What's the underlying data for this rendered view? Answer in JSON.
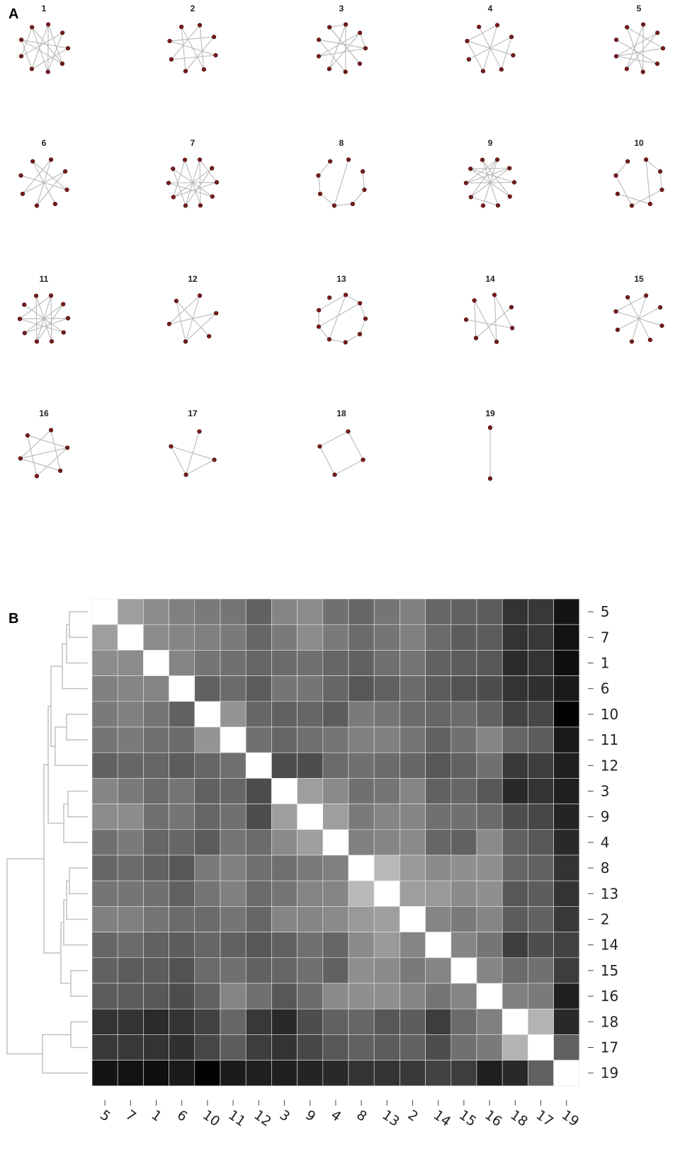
{
  "panel_a_label": "A",
  "panel_b_label": "B",
  "chart_data": [
    {
      "type": "network-small-multiples",
      "panel": "A",
      "networks": [
        {
          "title": "1",
          "nodes": 9,
          "edges": [
            [
              0,
              3
            ],
            [
              0,
              5
            ],
            [
              1,
              4
            ],
            [
              1,
              6
            ],
            [
              2,
              7
            ],
            [
              2,
              5
            ],
            [
              3,
              7
            ],
            [
              3,
              8
            ],
            [
              4,
              8
            ],
            [
              6,
              8
            ],
            [
              0,
              4
            ],
            [
              5,
              7
            ]
          ]
        },
        {
          "title": "2",
          "nodes": 8,
          "edges": [
            [
              0,
              5
            ],
            [
              1,
              4
            ],
            [
              2,
              6
            ],
            [
              3,
              7
            ],
            [
              0,
              3
            ],
            [
              4,
              7
            ],
            [
              1,
              6
            ],
            [
              2,
              5
            ]
          ]
        },
        {
          "title": "3",
          "nodes": 9,
          "edges": [
            [
              0,
              4
            ],
            [
              0,
              5
            ],
            [
              1,
              5
            ],
            [
              1,
              6
            ],
            [
              2,
              7
            ],
            [
              3,
              8
            ],
            [
              8,
              3
            ],
            [
              2,
              6
            ],
            [
              0,
              8
            ],
            [
              4,
              7
            ],
            [
              1,
              2
            ]
          ]
        },
        {
          "title": "4",
          "nodes": 8,
          "edges": [
            [
              0,
              4
            ],
            [
              1,
              5
            ],
            [
              2,
              6
            ],
            [
              3,
              7
            ],
            [
              0,
              6
            ],
            [
              1,
              3
            ],
            [
              4,
              6
            ]
          ]
        },
        {
          "title": "5",
          "nodes": 9,
          "edges": [
            [
              0,
              4
            ],
            [
              1,
              5
            ],
            [
              2,
              6
            ],
            [
              3,
              7
            ],
            [
              4,
              8
            ],
            [
              0,
              5
            ],
            [
              1,
              6
            ],
            [
              2,
              8
            ],
            [
              3,
              6
            ]
          ]
        },
        {
          "title": "6",
          "nodes": 8,
          "edges": [
            [
              0,
              4
            ],
            [
              1,
              5
            ],
            [
              2,
              6
            ],
            [
              3,
              7
            ],
            [
              0,
              5
            ],
            [
              1,
              4
            ],
            [
              2,
              7
            ]
          ]
        },
        {
          "title": "7",
          "nodes": 10,
          "edges": [
            [
              0,
              5
            ],
            [
              1,
              6
            ],
            [
              2,
              7
            ],
            [
              3,
              8
            ],
            [
              4,
              9
            ],
            [
              0,
              4
            ],
            [
              1,
              5
            ],
            [
              2,
              6
            ],
            [
              3,
              7
            ],
            [
              0,
              2
            ],
            [
              5,
              8
            ],
            [
              6,
              9
            ]
          ]
        },
        {
          "title": "8",
          "nodes": 8,
          "edges": [
            [
              0,
              4
            ],
            [
              1,
              2
            ],
            [
              3,
              4
            ],
            [
              4,
              5
            ],
            [
              6,
              7
            ],
            [
              2,
              3
            ],
            [
              5,
              6
            ]
          ]
        },
        {
          "title": "9",
          "nodes": 10,
          "edges": [
            [
              0,
              5
            ],
            [
              1,
              6
            ],
            [
              2,
              7
            ],
            [
              3,
              8
            ],
            [
              4,
              9
            ],
            [
              0,
              6
            ],
            [
              1,
              7
            ],
            [
              2,
              8
            ],
            [
              3,
              9
            ],
            [
              4,
              6
            ],
            [
              0,
              7
            ],
            [
              1,
              8
            ]
          ]
        },
        {
          "title": "10",
          "nodes": 8,
          "edges": [
            [
              0,
              1
            ],
            [
              1,
              2
            ],
            [
              2,
              4
            ],
            [
              3,
              5
            ],
            [
              4,
              6
            ],
            [
              6,
              7
            ],
            [
              0,
              3
            ]
          ]
        },
        {
          "title": "11",
          "nodes": 10,
          "edges": [
            [
              0,
              5
            ],
            [
              1,
              6
            ],
            [
              2,
              7
            ],
            [
              3,
              8
            ],
            [
              4,
              9
            ],
            [
              0,
              4
            ],
            [
              1,
              5
            ],
            [
              2,
              6
            ],
            [
              3,
              7
            ],
            [
              0,
              7
            ],
            [
              5,
              9
            ]
          ]
        },
        {
          "title": "12",
          "nodes": 6,
          "edges": [
            [
              0,
              3
            ],
            [
              1,
              4
            ],
            [
              2,
              5
            ],
            [
              0,
              4
            ],
            [
              1,
              3
            ],
            [
              3,
              5
            ]
          ]
        },
        {
          "title": "13",
          "nodes": 9,
          "edges": [
            [
              0,
              1
            ],
            [
              1,
              2
            ],
            [
              2,
              3
            ],
            [
              3,
              4
            ],
            [
              4,
              5
            ],
            [
              5,
              6
            ],
            [
              6,
              7
            ],
            [
              7,
              0
            ],
            [
              0,
              5
            ],
            [
              1,
              6
            ]
          ]
        },
        {
          "title": "14",
          "nodes": 7,
          "edges": [
            [
              0,
              3
            ],
            [
              1,
              4
            ],
            [
              2,
              5
            ],
            [
              3,
              6
            ],
            [
              0,
              2
            ],
            [
              4,
              6
            ]
          ]
        },
        {
          "title": "15",
          "nodes": 8,
          "edges": [
            [
              0,
              4
            ],
            [
              1,
              5
            ],
            [
              2,
              6
            ],
            [
              3,
              7
            ],
            [
              0,
              6
            ]
          ]
        },
        {
          "title": "16",
          "nodes": 6,
          "edges": [
            [
              0,
              2
            ],
            [
              1,
              3
            ],
            [
              2,
              4
            ],
            [
              3,
              5
            ],
            [
              4,
              0
            ],
            [
              5,
              1
            ],
            [
              1,
              4
            ]
          ]
        },
        {
          "title": "17",
          "nodes": 4,
          "edges": [
            [
              0,
              2
            ],
            [
              1,
              2
            ],
            [
              2,
              3
            ],
            [
              3,
              1
            ]
          ]
        },
        {
          "title": "18",
          "nodes": 4,
          "edges": [
            [
              0,
              1
            ],
            [
              0,
              3
            ],
            [
              1,
              2
            ],
            [
              2,
              3
            ]
          ]
        },
        {
          "title": "19",
          "nodes": 2,
          "edges": [
            [
              0,
              1
            ]
          ]
        }
      ]
    },
    {
      "type": "heatmap",
      "panel": "B",
      "grid": false,
      "x_categories": [
        "5",
        "7",
        "1",
        "6",
        "10",
        "11",
        "12",
        "3",
        "9",
        "4",
        "8",
        "13",
        "2",
        "14",
        "15",
        "16",
        "18",
        "17",
        "19"
      ],
      "y_categories": [
        "5",
        "7",
        "1",
        "6",
        "10",
        "11",
        "12",
        "3",
        "9",
        "4",
        "8",
        "13",
        "2",
        "14",
        "15",
        "16",
        "18",
        "17",
        "19"
      ],
      "value_range": [
        0,
        1
      ],
      "color_scale": {
        "low": "#000000",
        "high": "#ffffff"
      },
      "values": [
        [
          1.0,
          0.62,
          0.55,
          0.5,
          0.48,
          0.46,
          0.38,
          0.52,
          0.55,
          0.44,
          0.4,
          0.46,
          0.5,
          0.4,
          0.38,
          0.36,
          0.2,
          0.22,
          0.08
        ],
        [
          0.62,
          1.0,
          0.55,
          0.52,
          0.5,
          0.48,
          0.4,
          0.48,
          0.55,
          0.48,
          0.42,
          0.46,
          0.5,
          0.42,
          0.36,
          0.36,
          0.2,
          0.22,
          0.07
        ],
        [
          0.55,
          0.55,
          1.0,
          0.52,
          0.46,
          0.44,
          0.4,
          0.42,
          0.44,
          0.4,
          0.38,
          0.44,
          0.46,
          0.38,
          0.36,
          0.34,
          0.17,
          0.2,
          0.06
        ],
        [
          0.5,
          0.52,
          0.52,
          1.0,
          0.38,
          0.42,
          0.36,
          0.46,
          0.46,
          0.4,
          0.34,
          0.38,
          0.42,
          0.36,
          0.32,
          0.3,
          0.2,
          0.19,
          0.1
        ],
        [
          0.48,
          0.5,
          0.46,
          0.38,
          1.0,
          0.58,
          0.4,
          0.38,
          0.4,
          0.36,
          0.48,
          0.46,
          0.42,
          0.4,
          0.42,
          0.38,
          0.26,
          0.28,
          0.01
        ],
        [
          0.46,
          0.48,
          0.44,
          0.42,
          0.58,
          1.0,
          0.44,
          0.4,
          0.44,
          0.46,
          0.5,
          0.5,
          0.46,
          0.38,
          0.44,
          0.52,
          0.4,
          0.36,
          0.1
        ],
        [
          0.38,
          0.4,
          0.4,
          0.36,
          0.4,
          0.44,
          1.0,
          0.3,
          0.3,
          0.42,
          0.44,
          0.42,
          0.4,
          0.34,
          0.38,
          0.44,
          0.22,
          0.24,
          0.12
        ],
        [
          0.52,
          0.48,
          0.42,
          0.46,
          0.38,
          0.4,
          0.3,
          1.0,
          0.62,
          0.54,
          0.44,
          0.46,
          0.52,
          0.38,
          0.4,
          0.34,
          0.16,
          0.2,
          0.12
        ],
        [
          0.55,
          0.55,
          0.44,
          0.46,
          0.4,
          0.44,
          0.3,
          0.62,
          1.0,
          0.62,
          0.48,
          0.52,
          0.52,
          0.44,
          0.44,
          0.42,
          0.3,
          0.28,
          0.14
        ],
        [
          0.44,
          0.48,
          0.4,
          0.4,
          0.36,
          0.46,
          0.42,
          0.54,
          0.62,
          1.0,
          0.5,
          0.52,
          0.54,
          0.4,
          0.38,
          0.54,
          0.38,
          0.34,
          0.16
        ],
        [
          0.4,
          0.42,
          0.38,
          0.34,
          0.48,
          0.5,
          0.44,
          0.44,
          0.48,
          0.5,
          1.0,
          0.72,
          0.6,
          0.54,
          0.56,
          0.56,
          0.4,
          0.38,
          0.2
        ],
        [
          0.46,
          0.46,
          0.44,
          0.38,
          0.46,
          0.5,
          0.42,
          0.46,
          0.52,
          0.52,
          0.72,
          1.0,
          0.62,
          0.6,
          0.54,
          0.56,
          0.34,
          0.36,
          0.2
        ],
        [
          0.5,
          0.5,
          0.46,
          0.42,
          0.42,
          0.46,
          0.4,
          0.52,
          0.52,
          0.54,
          0.6,
          0.62,
          1.0,
          0.52,
          0.48,
          0.52,
          0.36,
          0.38,
          0.22
        ],
        [
          0.4,
          0.42,
          0.38,
          0.36,
          0.4,
          0.38,
          0.34,
          0.38,
          0.44,
          0.4,
          0.54,
          0.6,
          0.52,
          1.0,
          0.52,
          0.46,
          0.24,
          0.3,
          0.26
        ],
        [
          0.38,
          0.36,
          0.36,
          0.32,
          0.42,
          0.44,
          0.38,
          0.4,
          0.44,
          0.38,
          0.56,
          0.54,
          0.48,
          0.52,
          1.0,
          0.52,
          0.42,
          0.44,
          0.24
        ],
        [
          0.36,
          0.36,
          0.34,
          0.3,
          0.38,
          0.52,
          0.44,
          0.34,
          0.42,
          0.54,
          0.56,
          0.56,
          0.52,
          0.46,
          0.52,
          1.0,
          0.5,
          0.48,
          0.12
        ],
        [
          0.2,
          0.2,
          0.17,
          0.2,
          0.26,
          0.4,
          0.22,
          0.16,
          0.3,
          0.38,
          0.4,
          0.34,
          0.36,
          0.24,
          0.42,
          0.5,
          1.0,
          0.7,
          0.16
        ],
        [
          0.22,
          0.22,
          0.2,
          0.19,
          0.28,
          0.36,
          0.24,
          0.2,
          0.28,
          0.34,
          0.38,
          0.36,
          0.38,
          0.3,
          0.44,
          0.48,
          0.7,
          1.0,
          0.38
        ],
        [
          0.08,
          0.07,
          0.06,
          0.1,
          0.01,
          0.1,
          0.12,
          0.12,
          0.14,
          0.16,
          0.2,
          0.2,
          0.22,
          0.26,
          0.24,
          0.12,
          0.16,
          0.38,
          1.0
        ]
      ],
      "dendrogram_leaves": [
        "5",
        "7",
        "1",
        "6",
        "10",
        "11",
        "12",
        "3",
        "9",
        "4",
        "8",
        "13",
        "2",
        "14",
        "15",
        "16",
        "18",
        "17",
        "19"
      ]
    }
  ]
}
